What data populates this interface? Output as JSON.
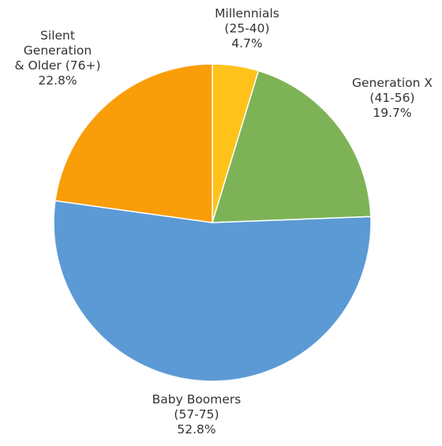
{
  "chart_data": {
    "type": "pie",
    "title": "",
    "start_angle_deg": 0,
    "direction": "clockwise",
    "slices": [
      {
        "label_lines": [
          "Millennials",
          "(25-40)"
        ],
        "value": 4.7,
        "value_text": "4.7%",
        "color": "#FFC21A"
      },
      {
        "label_lines": [
          "Generation X",
          "(41-56)"
        ],
        "value": 19.7,
        "value_text": "19.7%",
        "color": "#7DB356"
      },
      {
        "label_lines": [
          "Baby Boomers",
          "(57-75)"
        ],
        "value": 52.8,
        "value_text": "52.8%",
        "color": "#5B9AD5"
      },
      {
        "label_lines": [
          "Silent",
          "Generation",
          "& Older (76+)"
        ],
        "value": 22.8,
        "value_text": "22.8%",
        "color": "#F99D09"
      }
    ]
  }
}
